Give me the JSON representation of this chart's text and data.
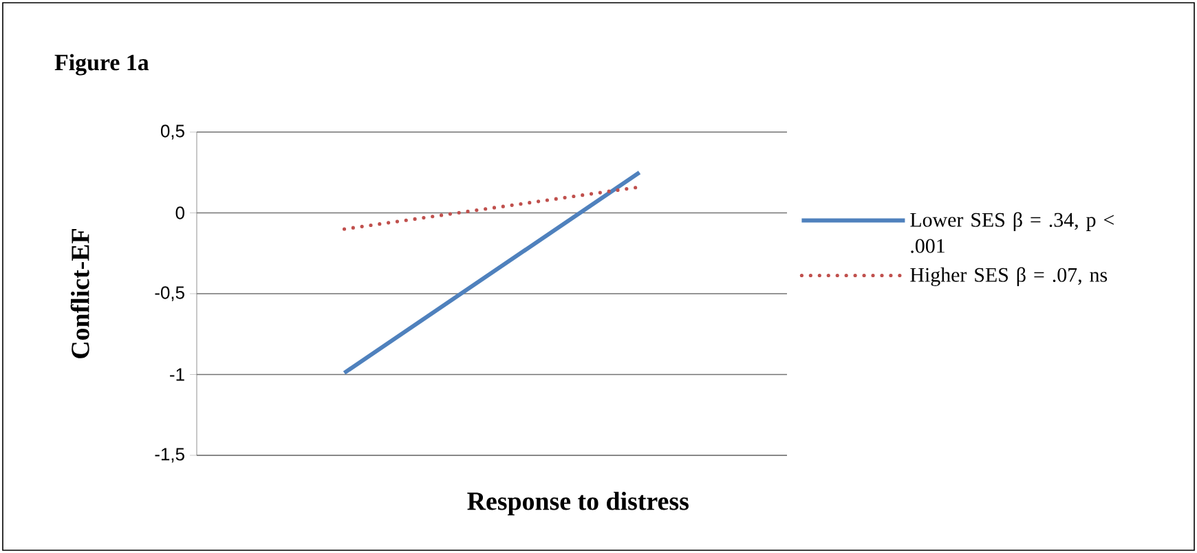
{
  "chart_data": {
    "type": "line",
    "title": "Figure 1a",
    "xlabel": "Response to distress",
    "ylabel": "Conflict-EF",
    "categories": [
      null,
      null
    ],
    "series": [
      {
        "name": "Lower SES β = .34, p < .001",
        "color": "#4f81bd",
        "line_style": "solid",
        "values": [
          -0.99,
          0.25
        ]
      },
      {
        "name": "Higher SES β = .07, ns",
        "color": "#c0504d",
        "line_style": "dotted",
        "values": [
          -0.1,
          0.16
        ]
      }
    ],
    "ylim": [
      -1.5,
      0.5
    ],
    "yticks": [
      {
        "value": -1.5,
        "label": "-1,5"
      },
      {
        "value": -1,
        "label": "-1"
      },
      {
        "value": -0.5,
        "label": "-0,5"
      },
      {
        "value": 0,
        "label": "0"
      },
      {
        "value": 0.5,
        "label": "0,5"
      }
    ],
    "grid": "y",
    "legend": "right",
    "tick_labels": "y"
  }
}
